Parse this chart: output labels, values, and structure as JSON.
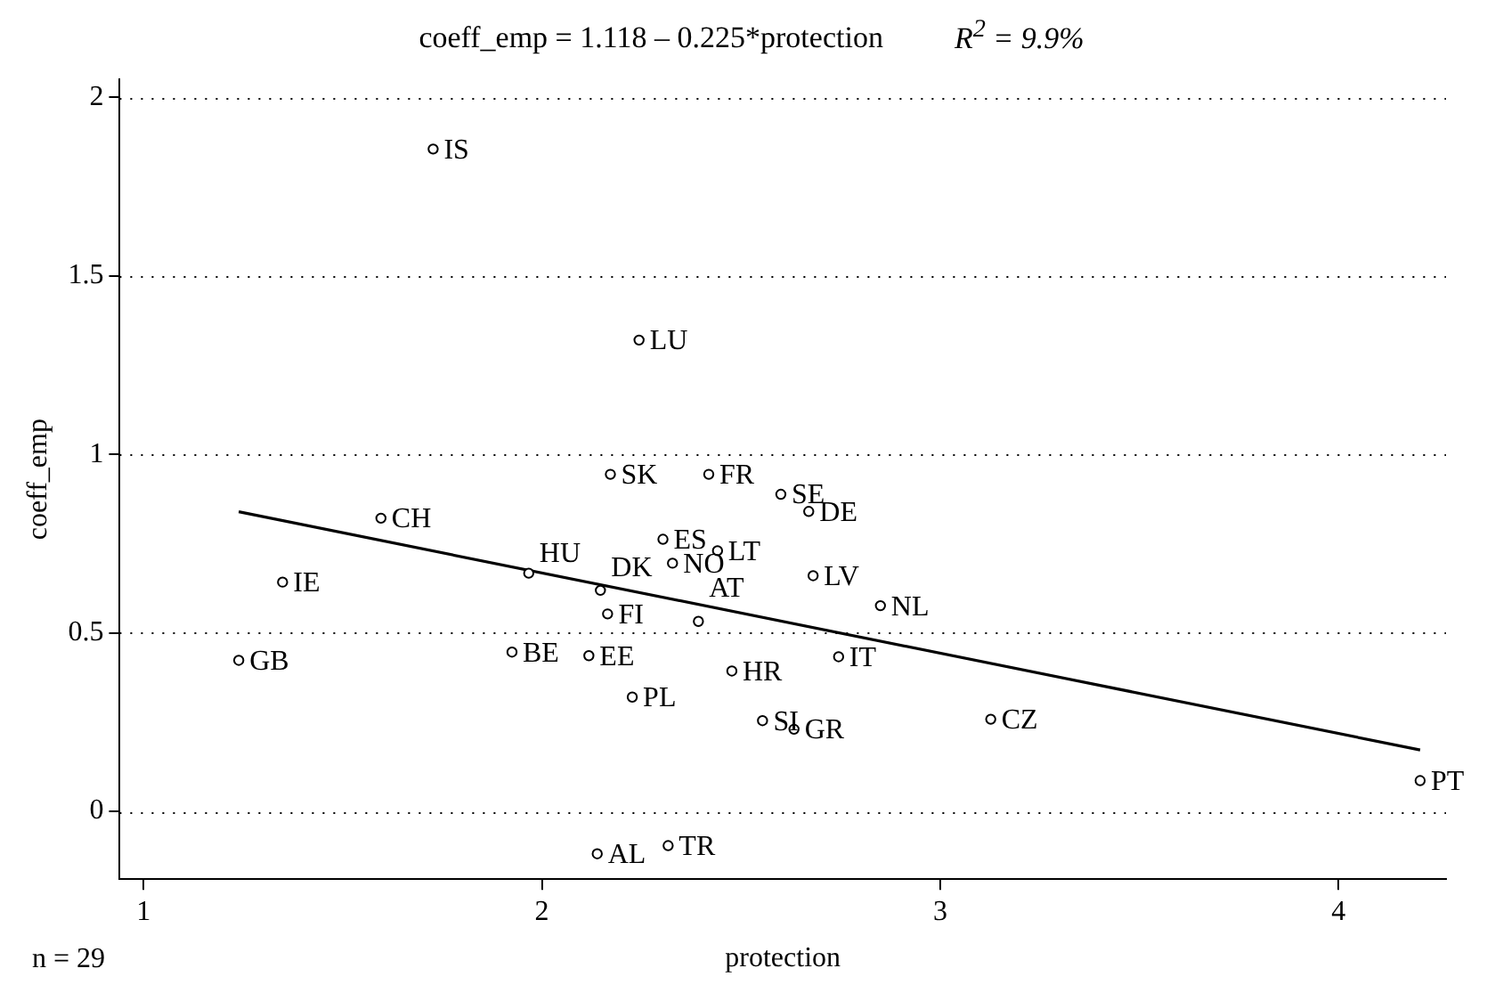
{
  "chart_data": {
    "type": "scatter",
    "title": "coeff_emp = 1.118 – 0.225*protection",
    "subtitle": "R$^{2}$ = 9.9%",
    "xlabel": "protection",
    "ylabel": "coeff_emp",
    "x": [
      1.727,
      2.244,
      2.172,
      1.596,
      1.349,
      1.239,
      1.967,
      2.147,
      2.165,
      1.925,
      2.118,
      2.227,
      2.304,
      2.328,
      2.139,
      2.317,
      2.419,
      2.6,
      2.67,
      2.441,
      2.681,
      2.85,
      2.393,
      2.745,
      2.477,
      2.554,
      2.633,
      3.127,
      4.205
    ],
    "series": [
      {
        "color": "#000000",
        "values": [
          1.855,
          1.32,
          0.944,
          0.821,
          0.642,
          0.423,
          0.667,
          0.619,
          0.553,
          0.446,
          0.436,
          0.32,
          0.762,
          0.695,
          -0.119,
          -0.096,
          0.944,
          0.888,
          0.84,
          0.73,
          0.66,
          0.576,
          0.532,
          0.433,
          0.393,
          0.254,
          0.23,
          0.258,
          0.086
        ]
      },
      {
        "type": "line",
        "marker": "none",
        "color": "#000000",
        "x": [
          1.239,
          4.205
        ],
        "values": [
          0.839,
          0.172
        ]
      }
    ],
    "annotations": [
      {
        "text": "IS",
        "x": 1.727,
        "y": 1.855
      },
      {
        "text": "LU",
        "x": 2.244,
        "y": 1.32
      },
      {
        "text": "SK",
        "x": 2.172,
        "y": 0.944
      },
      {
        "text": "CH",
        "x": 1.596,
        "y": 0.821
      },
      {
        "text": "IE",
        "x": 1.349,
        "y": 0.642
      },
      {
        "text": "GB",
        "x": 1.239,
        "y": 0.423
      },
      {
        "text": "HU",
        "x": 1.967,
        "y": 0.667
      },
      {
        "text": "DK",
        "x": 2.147,
        "y": 0.619
      },
      {
        "text": "FI",
        "x": 2.165,
        "y": 0.553
      },
      {
        "text": "BE",
        "x": 1.925,
        "y": 0.446
      },
      {
        "text": "EE",
        "x": 2.118,
        "y": 0.436
      },
      {
        "text": "PL",
        "x": 2.227,
        "y": 0.32
      },
      {
        "text": "ES",
        "x": 2.304,
        "y": 0.762
      },
      {
        "text": "NO",
        "x": 2.328,
        "y": 0.695
      },
      {
        "text": "AL",
        "x": 2.139,
        "y": -0.119
      },
      {
        "text": "TR",
        "x": 2.317,
        "y": -0.096
      },
      {
        "text": "FR",
        "x": 2.419,
        "y": 0.944
      },
      {
        "text": "SE",
        "x": 2.6,
        "y": 0.888
      },
      {
        "text": "DE",
        "x": 2.67,
        "y": 0.84
      },
      {
        "text": "LT",
        "x": 2.441,
        "y": 0.73
      },
      {
        "text": "LV",
        "x": 2.681,
        "y": 0.66
      },
      {
        "text": "NL",
        "x": 2.85,
        "y": 0.576
      },
      {
        "text": "AT",
        "x": 2.393,
        "y": 0.532
      },
      {
        "text": "IT",
        "x": 2.745,
        "y": 0.433
      },
      {
        "text": "HR",
        "x": 2.477,
        "y": 0.393
      },
      {
        "text": "SI",
        "x": 2.554,
        "y": 0.254
      },
      {
        "text": "GR",
        "x": 2.633,
        "y": 0.23
      },
      {
        "text": "CZ",
        "x": 3.127,
        "y": 0.258
      },
      {
        "text": "PT",
        "x": 4.205,
        "y": 0.086
      },
      "n = 29"
    ],
    "xlim": [
      0.94,
      4.27
    ],
    "xticks": [
      1,
      2,
      3,
      4
    ],
    "ylim": [
      -0.19,
      2.05
    ],
    "yticks": [
      0,
      0.5,
      1,
      1.5,
      2
    ],
    "grid": "y",
    "legend": false,
    "marker": "circle"
  }
}
